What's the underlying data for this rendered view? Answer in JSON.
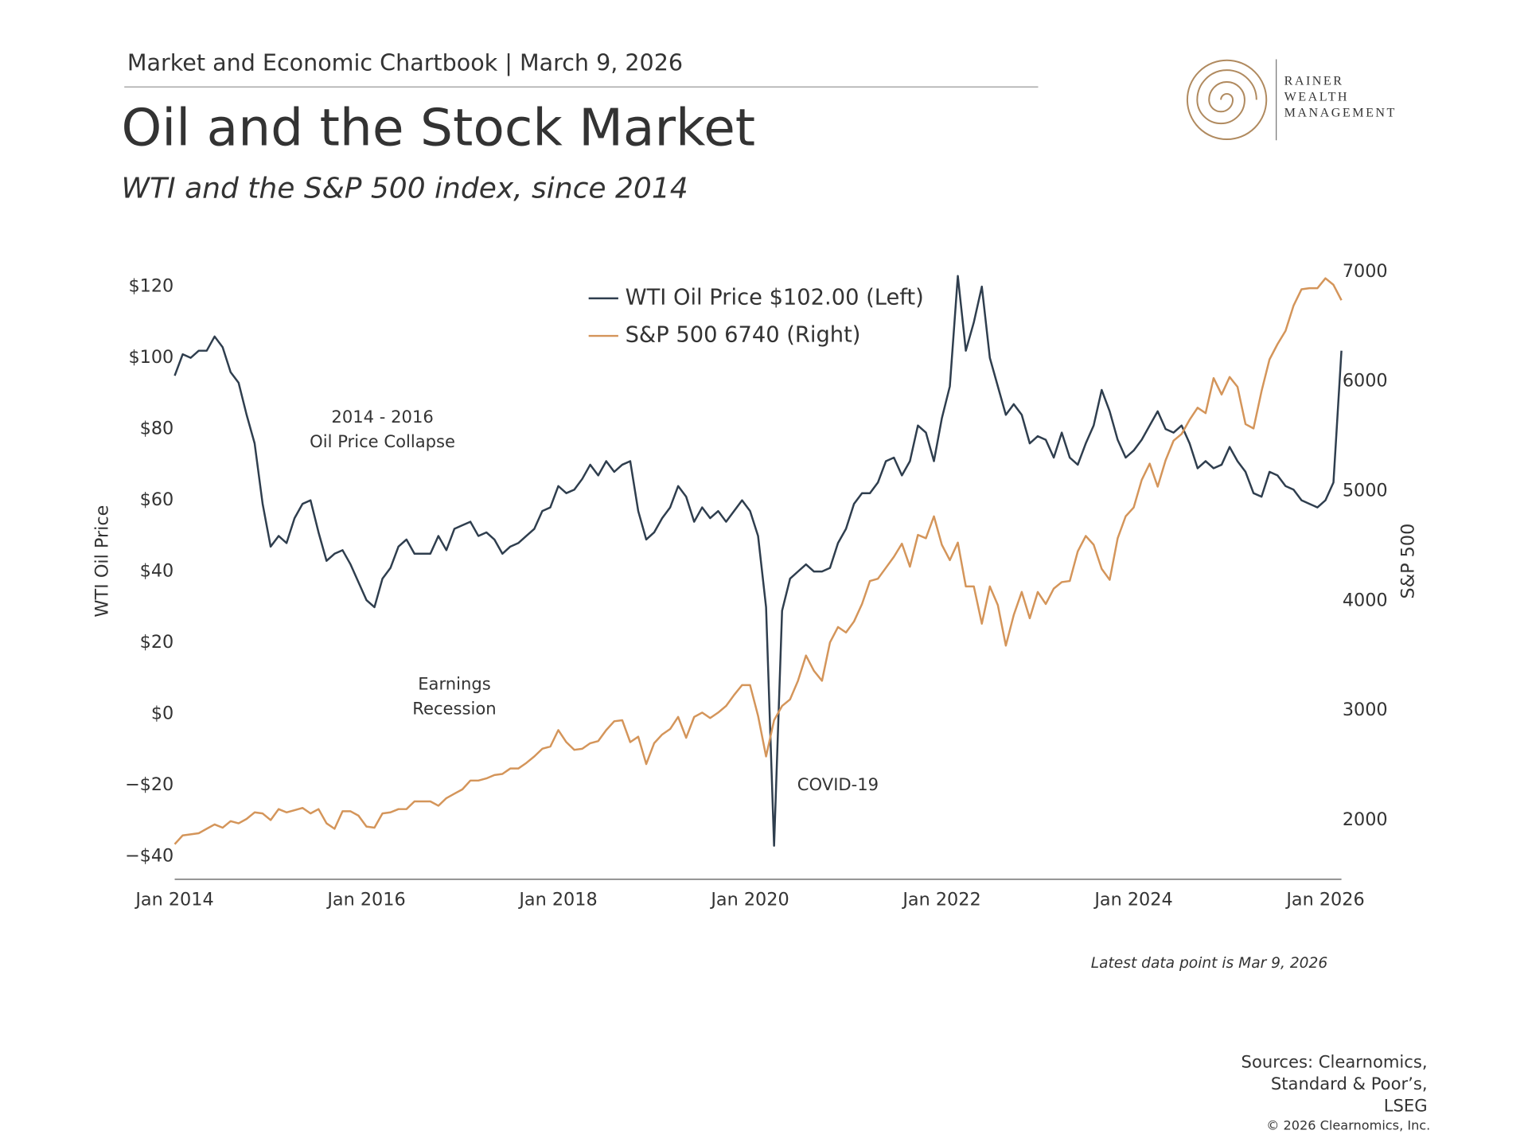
{
  "header": {
    "kicker": "Market and Economic Chartbook | March 9, 2026",
    "title": "Oil and the Stock Market",
    "subtitle": "WTI and the S&P 500 index, since 2014"
  },
  "logo": {
    "lines": [
      "RAINER",
      "WEALTH",
      "MANAGEMENT"
    ]
  },
  "chart_data": {
    "type": "line",
    "y_label": "WTI Oil Price",
    "y2_label": "S&P 500",
    "x": [
      "2014-01",
      "2014-02",
      "2014-03",
      "2014-04",
      "2014-05",
      "2014-06",
      "2014-07",
      "2014-08",
      "2014-09",
      "2014-10",
      "2014-11",
      "2014-12",
      "2015-01",
      "2015-02",
      "2015-03",
      "2015-04",
      "2015-05",
      "2015-06",
      "2015-07",
      "2015-08",
      "2015-09",
      "2015-10",
      "2015-11",
      "2015-12",
      "2016-01",
      "2016-02",
      "2016-03",
      "2016-04",
      "2016-05",
      "2016-06",
      "2016-07",
      "2016-08",
      "2016-09",
      "2016-10",
      "2016-11",
      "2016-12",
      "2017-01",
      "2017-02",
      "2017-03",
      "2017-04",
      "2017-05",
      "2017-06",
      "2017-07",
      "2017-08",
      "2017-09",
      "2017-10",
      "2017-11",
      "2017-12",
      "2018-01",
      "2018-02",
      "2018-03",
      "2018-04",
      "2018-05",
      "2018-06",
      "2018-07",
      "2018-08",
      "2018-09",
      "2018-10",
      "2018-11",
      "2018-12",
      "2019-01",
      "2019-02",
      "2019-03",
      "2019-04",
      "2019-05",
      "2019-06",
      "2019-07",
      "2019-08",
      "2019-09",
      "2019-10",
      "2019-11",
      "2019-12",
      "2020-01",
      "2020-02",
      "2020-03",
      "2020-04",
      "2020-05",
      "2020-06",
      "2020-07",
      "2020-08",
      "2020-09",
      "2020-10",
      "2020-11",
      "2020-12",
      "2021-01",
      "2021-02",
      "2021-03",
      "2021-04",
      "2021-05",
      "2021-06",
      "2021-07",
      "2021-08",
      "2021-09",
      "2021-10",
      "2021-11",
      "2021-12",
      "2022-01",
      "2022-02",
      "2022-03",
      "2022-04",
      "2022-05",
      "2022-06",
      "2022-07",
      "2022-08",
      "2022-09",
      "2022-10",
      "2022-11",
      "2022-12",
      "2023-01",
      "2023-02",
      "2023-03",
      "2023-04",
      "2023-05",
      "2023-06",
      "2023-07",
      "2023-08",
      "2023-09",
      "2023-10",
      "2023-11",
      "2023-12",
      "2024-01",
      "2024-02",
      "2024-03",
      "2024-04",
      "2024-05",
      "2024-06",
      "2024-07",
      "2024-08",
      "2024-09",
      "2024-10",
      "2024-11",
      "2024-12",
      "2025-01",
      "2025-02",
      "2025-03",
      "2025-04",
      "2025-05",
      "2025-06",
      "2025-07",
      "2025-08",
      "2025-09",
      "2025-10",
      "2025-11",
      "2025-12",
      "2026-01",
      "2026-02",
      "2026-03"
    ],
    "series": [
      {
        "name": "WTI Oil Price $102.00 (Left)",
        "color": "#2f3e4e",
        "axis": "y",
        "values": [
          95,
          101,
          100,
          102,
          102,
          106,
          103,
          96,
          93,
          84,
          76,
          59,
          47,
          50,
          48,
          55,
          59,
          60,
          51,
          43,
          45,
          46,
          42,
          37,
          32,
          30,
          38,
          41,
          47,
          49,
          45,
          45,
          45,
          50,
          46,
          52,
          53,
          54,
          50,
          51,
          49,
          45,
          47,
          48,
          50,
          52,
          57,
          58,
          64,
          62,
          63,
          66,
          70,
          67,
          71,
          68,
          70,
          71,
          57,
          49,
          51,
          55,
          58,
          64,
          61,
          54,
          58,
          55,
          57,
          54,
          57,
          60,
          57,
          50,
          30,
          -37,
          29,
          38,
          40,
          42,
          40,
          40,
          41,
          48,
          52,
          59,
          62,
          62,
          65,
          71,
          72,
          67,
          71,
          81,
          79,
          71,
          83,
          92,
          123,
          102,
          110,
          120,
          100,
          92,
          84,
          87,
          84,
          76,
          78,
          77,
          72,
          79,
          72,
          70,
          76,
          81,
          91,
          85,
          77,
          72,
          74,
          77,
          81,
          85,
          80,
          79,
          81,
          76,
          69,
          71,
          69,
          70,
          75,
          71,
          68,
          62,
          61,
          68,
          67,
          64,
          63,
          60,
          59,
          58,
          60,
          65,
          102
        ]
      },
      {
        "name": "S&P 500 6740 (Right)",
        "color": "#d4955a",
        "axis": "y2",
        "values": [
          1780,
          1860,
          1870,
          1880,
          1920,
          1960,
          1930,
          1990,
          1970,
          2010,
          2070,
          2060,
          2000,
          2100,
          2070,
          2090,
          2110,
          2060,
          2100,
          1970,
          1920,
          2080,
          2080,
          2040,
          1940,
          1930,
          2060,
          2070,
          2100,
          2100,
          2170,
          2170,
          2170,
          2130,
          2200,
          2240,
          2280,
          2360,
          2360,
          2380,
          2410,
          2420,
          2470,
          2470,
          2520,
          2580,
          2650,
          2670,
          2820,
          2710,
          2640,
          2650,
          2700,
          2720,
          2820,
          2900,
          2910,
          2710,
          2760,
          2510,
          2700,
          2780,
          2830,
          2940,
          2750,
          2940,
          2980,
          2930,
          2980,
          3040,
          3140,
          3230,
          3230,
          2950,
          2580,
          2910,
          3040,
          3100,
          3270,
          3500,
          3360,
          3270,
          3620,
          3760,
          3710,
          3810,
          3970,
          4180,
          4200,
          4300,
          4400,
          4520,
          4310,
          4600,
          4570,
          4770,
          4510,
          4370,
          4530,
          4130,
          4130,
          3790,
          4130,
          3960,
          3590,
          3870,
          4080,
          3840,
          4080,
          3970,
          4110,
          4170,
          4180,
          4450,
          4590,
          4510,
          4290,
          4190,
          4570,
          4770,
          4850,
          5100,
          5250,
          5040,
          5280,
          5460,
          5520,
          5650,
          5760,
          5710,
          6030,
          5880,
          6040,
          5950,
          5610,
          5570,
          5910,
          6200,
          6340,
          6460,
          6690,
          6840,
          6850,
          6850,
          6940,
          6880,
          6740
        ]
      }
    ],
    "xlim": [
      "2014-01",
      "2026-03"
    ],
    "xticks": [
      {
        "value": "2014-01",
        "label": "Jan 2014"
      },
      {
        "value": "2016-01",
        "label": "Jan 2016"
      },
      {
        "value": "2018-01",
        "label": "Jan 2018"
      },
      {
        "value": "2020-01",
        "label": "Jan 2020"
      },
      {
        "value": "2022-01",
        "label": "Jan 2022"
      },
      {
        "value": "2024-01",
        "label": "Jan 2024"
      },
      {
        "value": "2026-01",
        "label": "Jan 2026"
      }
    ],
    "ylim": [
      -46.4,
      124.2
    ],
    "yticks": [
      {
        "value": -40,
        "label": "−$40"
      },
      {
        "value": -20,
        "label": "−$20"
      },
      {
        "value": 0,
        "label": "$0"
      },
      {
        "value": 20,
        "label": "$20"
      },
      {
        "value": 40,
        "label": "$40"
      },
      {
        "value": 60,
        "label": "$60"
      },
      {
        "value": 80,
        "label": "$80"
      },
      {
        "value": 100,
        "label": "$100"
      },
      {
        "value": 120,
        "label": "$120"
      }
    ],
    "y2lim": [
      1460,
      7000
    ],
    "y2ticks": [
      2000,
      3000,
      4000,
      5000,
      6000,
      7000
    ],
    "grid": false,
    "legend": "top",
    "annotations": [
      {
        "lines": [
          "2014 - 2016",
          "Oil Price Collapse"
        ],
        "x": "2016-03"
      },
      {
        "lines": [
          "Earnings",
          "Recession"
        ],
        "x": "2016-12"
      },
      {
        "lines": [
          "COVID-19"
        ],
        "x": "2020-12"
      }
    ],
    "note": "Latest data point is Mar 9, 2026"
  },
  "footer": {
    "sources": [
      "Sources: Clearnomics,",
      "Standard & Poor’s,",
      "LSEG"
    ],
    "copyright": "© 2026 Clearnomics, Inc."
  }
}
